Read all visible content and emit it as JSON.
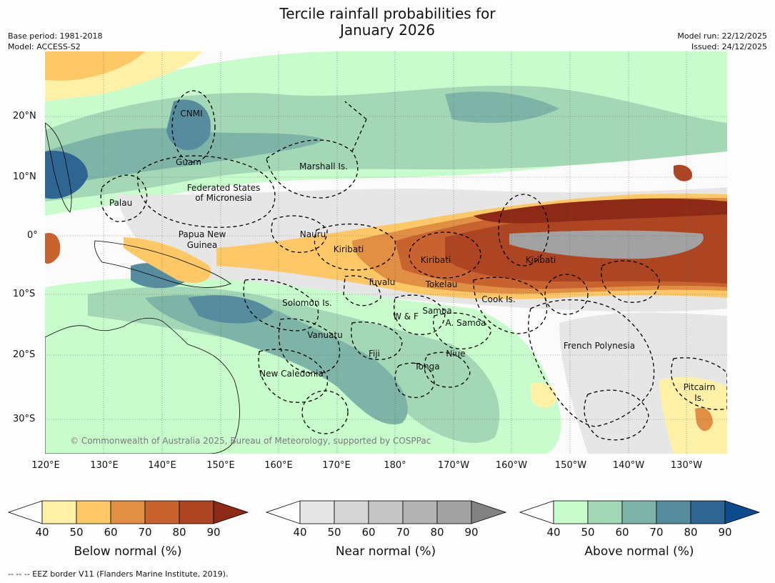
{
  "title_line1": "Tercile rainfall probabilities for",
  "title_line2": "January 2026",
  "meta_left": [
    "Base period: 1981-2018",
    "Model: ACCESS-S2"
  ],
  "meta_right": [
    "Model run: 22/12/2025",
    "Issued: 24/12/2025"
  ],
  "lat_labels": [
    "20°N",
    "10°N",
    "0°",
    "10°S",
    "20°S",
    "30°S"
  ],
  "lon_labels": [
    "120°E",
    "130°E",
    "140°E",
    "150°E",
    "160°E",
    "170°E",
    "180°",
    "170°W",
    "160°W",
    "150°W",
    "140°W",
    "130°W"
  ],
  "places": [
    "CNMI",
    "Guam",
    "Marshall Is.",
    "Palau",
    "Federated States",
    "of Micronesia",
    "Papua New",
    "Guinea",
    "Nauru",
    "Kiribati",
    "Kiribati",
    "Kiribati",
    "Tuvalu",
    "Tokelau",
    "Cook Is.",
    "Solomon Is.",
    "Samoa",
    "W & F",
    "A. Samoa",
    "Vanuatu",
    "Fiji",
    "Niue",
    "Tonga",
    "New Caledonia",
    "French Polynesia",
    "Pitcairn",
    "Is."
  ],
  "copyright": "© Commonwealth of Australia 2025, Bureau of Meteorology, supported by COSPPac",
  "colorbars": [
    {
      "title": "Below normal (%)",
      "ticks": [
        "40",
        "50",
        "60",
        "70",
        "80",
        "90"
      ],
      "colors": [
        "#fff0a8",
        "#fdc865",
        "#e08f45",
        "#c8622f",
        "#ad4522"
      ],
      "extend_low": "#ffffff",
      "extend_high": "#8c2a17"
    },
    {
      "title": "Near normal (%)",
      "ticks": [
        "40",
        "50",
        "60",
        "70",
        "80",
        "90"
      ],
      "colors": [
        "#e6e6e6",
        "#d6d6d6",
        "#c6c6c6",
        "#b3b3b3",
        "#a2a2a2"
      ],
      "extend_low": "#ffffff",
      "extend_high": "#828282"
    },
    {
      "title": "Above normal (%)",
      "ticks": [
        "40",
        "50",
        "60",
        "70",
        "80",
        "90"
      ],
      "colors": [
        "#c8fccc",
        "#a3d7b6",
        "#7eb3a8",
        "#578c9e",
        "#2e6593"
      ],
      "extend_low": "#ffffff",
      "extend_high": "#0d4c8c"
    }
  ],
  "footer": "-- -- -- EEZ border V11 (Flanders Marine Institute, 2019)."
}
